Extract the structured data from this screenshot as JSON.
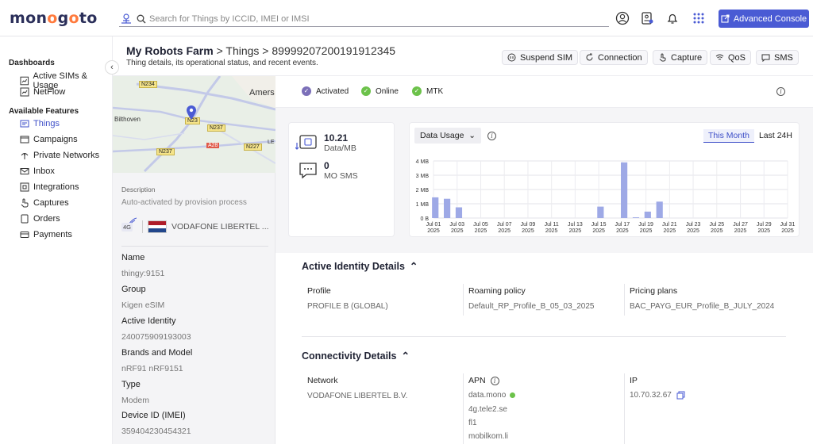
{
  "app": {
    "logo_text": "monogoto",
    "search_placeholder": "Search for Things by ICCID, IMEI or IMSI",
    "advanced_console_label": "Advanced Console",
    "brand_color": "#4a5bd4",
    "accent_color": "#ff7a3d"
  },
  "sidebar": {
    "dashboards_heading": "Dashboards",
    "dashboards": [
      {
        "label": "Active SIMs & Usage",
        "icon": "chart-icon"
      },
      {
        "label": "NetFlow",
        "icon": "chart-icon"
      }
    ],
    "features_heading": "Available Features",
    "features": [
      {
        "label": "Things",
        "icon": "things-icon",
        "active": true
      },
      {
        "label": "Campaigns",
        "icon": "campaigns-icon"
      },
      {
        "label": "Private Networks",
        "icon": "network-icon"
      },
      {
        "label": "Inbox",
        "icon": "inbox-icon"
      },
      {
        "label": "Integrations",
        "icon": "integrations-icon"
      },
      {
        "label": "Captures",
        "icon": "capture-icon"
      },
      {
        "label": "Orders",
        "icon": "orders-icon"
      },
      {
        "label": "Payments",
        "icon": "payments-icon"
      }
    ]
  },
  "header": {
    "breadcrumb_root": "My Robots Farm",
    "breadcrumb_rest": " > Things > 89999207200191912345",
    "subtitle": "Thing details, its operational status, and recent events.",
    "actions": [
      {
        "label": "Suspend SIM",
        "icon": "suspend-icon"
      },
      {
        "label": "Connection",
        "icon": "connection-icon"
      },
      {
        "label": "Capture",
        "icon": "capture-icon"
      },
      {
        "label": "QoS",
        "icon": "wifi-icon"
      },
      {
        "label": "SMS",
        "icon": "sms-icon"
      }
    ]
  },
  "map": {
    "labels": [
      "N234",
      "Amers",
      "Bilthoven",
      "N237",
      "N237",
      "A28",
      "N227",
      "N23",
      "LE"
    ]
  },
  "details": {
    "description_label": "Description",
    "description_value": "Auto-activated by provision process",
    "network_badge": "4G",
    "network_name": "VODAFONE LIBERTEL ...",
    "fields": [
      {
        "label": "Name",
        "value": "thingy:9151"
      },
      {
        "label": "Group",
        "value": "Kigen eSIM"
      },
      {
        "label": "Active Identity",
        "value": "240075909193003"
      },
      {
        "label": "Brands and Model",
        "value": "nRF91 nRF9151"
      },
      {
        "label": "Type",
        "value": "Modem"
      },
      {
        "label": "Device ID (IMEI)",
        "value": "359404230454321"
      }
    ]
  },
  "status": {
    "items": [
      {
        "label": "Activated",
        "color": "#7b6fb8"
      },
      {
        "label": "Online",
        "color": "#6cc24a"
      },
      {
        "label": "MTK",
        "color": "#6cc24a"
      }
    ]
  },
  "usage": {
    "data_value": "10.21",
    "data_unit": "Data/MB",
    "sms_value": "0",
    "sms_unit": "MO SMS",
    "selector_label": "Data Usage",
    "toggle_month": "This Month",
    "toggle_24h": "Last 24H"
  },
  "chart_data": {
    "type": "bar",
    "title": "",
    "xlabel": "",
    "ylabel": "",
    "ylim": [
      0,
      4
    ],
    "yticks": [
      "0 B",
      "1 MB",
      "2 MB",
      "3 MB",
      "4 MB"
    ],
    "xticks": [
      {
        "day": "Jul 01",
        "year": "2025"
      },
      {
        "day": "Jul 03",
        "year": "2025"
      },
      {
        "day": "Jul 05",
        "year": "2025"
      },
      {
        "day": "Jul 07",
        "year": "2025"
      },
      {
        "day": "Jul 09",
        "year": "2025"
      },
      {
        "day": "Jul 11",
        "year": "2025"
      },
      {
        "day": "Jul 13",
        "year": "2025"
      },
      {
        "day": "Jul 15",
        "year": "2025"
      },
      {
        "day": "Jul 17",
        "year": "2025"
      },
      {
        "day": "Jul 19",
        "year": "2025"
      },
      {
        "day": "Jul 21",
        "year": "2025"
      },
      {
        "day": "Jul 23",
        "year": "2025"
      },
      {
        "day": "Jul 25",
        "year": "2025"
      },
      {
        "day": "Jul 27",
        "year": "2025"
      },
      {
        "day": "Jul 29",
        "year": "2025"
      },
      {
        "day": "Jul 31",
        "year": "2025"
      }
    ],
    "days": [
      "Jul 01",
      "Jul 02",
      "Jul 03",
      "Jul 04",
      "Jul 05",
      "Jul 06",
      "Jul 07",
      "Jul 08",
      "Jul 09",
      "Jul 10",
      "Jul 11",
      "Jul 12",
      "Jul 13",
      "Jul 14",
      "Jul 15",
      "Jul 16",
      "Jul 17",
      "Jul 18",
      "Jul 19",
      "Jul 20",
      "Jul 21",
      "Jul 22",
      "Jul 23",
      "Jul 24",
      "Jul 25",
      "Jul 26",
      "Jul 27",
      "Jul 28",
      "Jul 29",
      "Jul 30",
      "Jul 31"
    ],
    "values": [
      1.45,
      1.35,
      0.75,
      0,
      0,
      0,
      0,
      0,
      0,
      0,
      0,
      0,
      0,
      0,
      0.8,
      0,
      3.9,
      0.05,
      0.45,
      1.15,
      0,
      0,
      0,
      0,
      0,
      0,
      0,
      0,
      0,
      0,
      0
    ],
    "bar_color": "#9ea9e6",
    "grid": true
  },
  "identity": {
    "title": "Active Identity Details",
    "columns": [
      {
        "label": "Profile",
        "value": "PROFILE B (GLOBAL)"
      },
      {
        "label": "Roaming policy",
        "value": "Default_RP_Profile_B_05_03_2025"
      },
      {
        "label": "Pricing plans",
        "value": "BAC_PAYG_EUR_Profile_B_JULY_2024"
      }
    ]
  },
  "connectivity": {
    "title": "Connectivity Details",
    "network_label": "Network",
    "network_value": "VODAFONE LIBERTEL B.V.",
    "apn_label": "APN",
    "apn_values": [
      "data.mono",
      "4g.tele2.se",
      "fl1",
      "mobilkom.li"
    ],
    "ip_label": "IP",
    "ip_value": "10.70.32.67"
  }
}
